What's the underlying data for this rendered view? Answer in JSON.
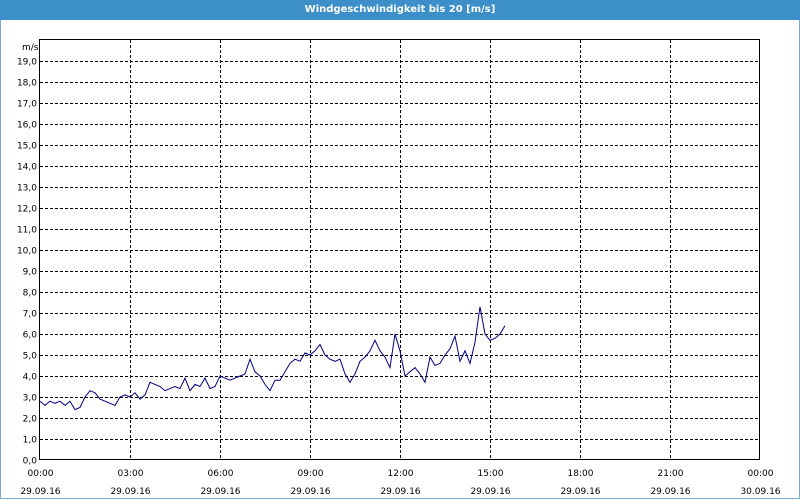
{
  "window": {
    "title": "Windgeschwindigkeit bis 20 [m/s]"
  },
  "colors": {
    "titlebar": "#3c8fc8",
    "series": "#000080",
    "grid": "#000000"
  },
  "chart_data": {
    "type": "line",
    "ylabel": "m/s",
    "ylim": [
      0,
      20
    ],
    "y_ticks": [
      "0,0",
      "1,0",
      "2,0",
      "3,0",
      "4,0",
      "5,0",
      "6,0",
      "7,0",
      "8,0",
      "9,0",
      "10,0",
      "11,0",
      "12,0",
      "13,0",
      "14,0",
      "15,0",
      "16,0",
      "17,0",
      "18,0",
      "19,0"
    ],
    "x_ticks": [
      {
        "time": "00:00",
        "date": "29.09.16"
      },
      {
        "time": "03:00",
        "date": "29.09.16"
      },
      {
        "time": "06:00",
        "date": "29.09.16"
      },
      {
        "time": "09:00",
        "date": "29.09.16"
      },
      {
        "time": "12:00",
        "date": "29.09.16"
      },
      {
        "time": "15:00",
        "date": "29.09.16"
      },
      {
        "time": "18:00",
        "date": "29.09.16"
      },
      {
        "time": "21:00",
        "date": "29.09.16"
      },
      {
        "time": "00:00",
        "date": "30.09.16"
      }
    ],
    "grid": true,
    "series": [
      {
        "x": [
          "00:00",
          "00:10",
          "00:20",
          "00:30",
          "00:40",
          "00:50",
          "01:00",
          "01:10",
          "01:20",
          "01:30",
          "01:40",
          "01:50",
          "02:00",
          "02:10",
          "02:20",
          "02:30",
          "02:40",
          "02:50",
          "03:00",
          "03:10",
          "03:20",
          "03:30",
          "03:40",
          "03:50",
          "04:00",
          "04:10",
          "04:20",
          "04:30",
          "04:40",
          "04:50",
          "05:00",
          "05:10",
          "05:20",
          "05:30",
          "05:40",
          "05:50",
          "06:00",
          "06:10",
          "06:20",
          "06:30",
          "06:40",
          "06:50",
          "07:00",
          "07:10",
          "07:20",
          "07:30",
          "07:40",
          "07:50",
          "08:00",
          "08:10",
          "08:20",
          "08:30",
          "08:40",
          "08:50",
          "09:00",
          "09:10",
          "09:20",
          "09:30",
          "09:40",
          "09:50",
          "10:00",
          "10:10",
          "10:20",
          "10:30",
          "10:40",
          "10:50",
          "11:00",
          "11:10",
          "11:20",
          "11:30",
          "11:40",
          "11:50",
          "12:00",
          "12:10",
          "12:20",
          "12:30",
          "12:40",
          "12:50",
          "13:00",
          "13:10",
          "13:20",
          "13:30",
          "13:40",
          "13:50",
          "14:00",
          "14:10",
          "14:20",
          "14:30",
          "14:40",
          "14:50",
          "15:00",
          "15:10",
          "15:20",
          "15:30"
        ],
        "values": [
          2.8,
          2.6,
          2.8,
          2.7,
          2.8,
          2.6,
          2.8,
          2.4,
          2.5,
          3.0,
          3.3,
          3.2,
          2.9,
          2.8,
          2.7,
          2.6,
          3.0,
          3.1,
          3.0,
          3.2,
          2.9,
          3.1,
          3.7,
          3.6,
          3.5,
          3.3,
          3.4,
          3.5,
          3.4,
          3.9,
          3.3,
          3.6,
          3.5,
          3.9,
          3.4,
          3.5,
          4.0,
          3.9,
          3.8,
          3.9,
          4.0,
          4.1,
          4.8,
          4.2,
          4.0,
          3.6,
          3.3,
          3.8,
          3.8,
          4.2,
          4.6,
          4.8,
          4.7,
          5.1,
          5.0,
          5.2,
          5.5,
          5.0,
          4.8,
          4.7,
          4.8,
          4.1,
          3.7,
          4.1,
          4.7,
          4.9,
          5.2,
          5.7,
          5.2,
          4.9,
          4.4,
          6.0,
          5.2,
          4.0,
          4.2,
          4.4,
          4.1,
          3.7,
          4.9,
          4.5,
          4.6,
          5.0,
          5.3,
          5.9,
          4.7,
          5.2,
          4.6,
          5.6,
          7.3,
          6.0,
          5.7,
          5.8,
          6.0,
          6.4
        ]
      }
    ]
  }
}
